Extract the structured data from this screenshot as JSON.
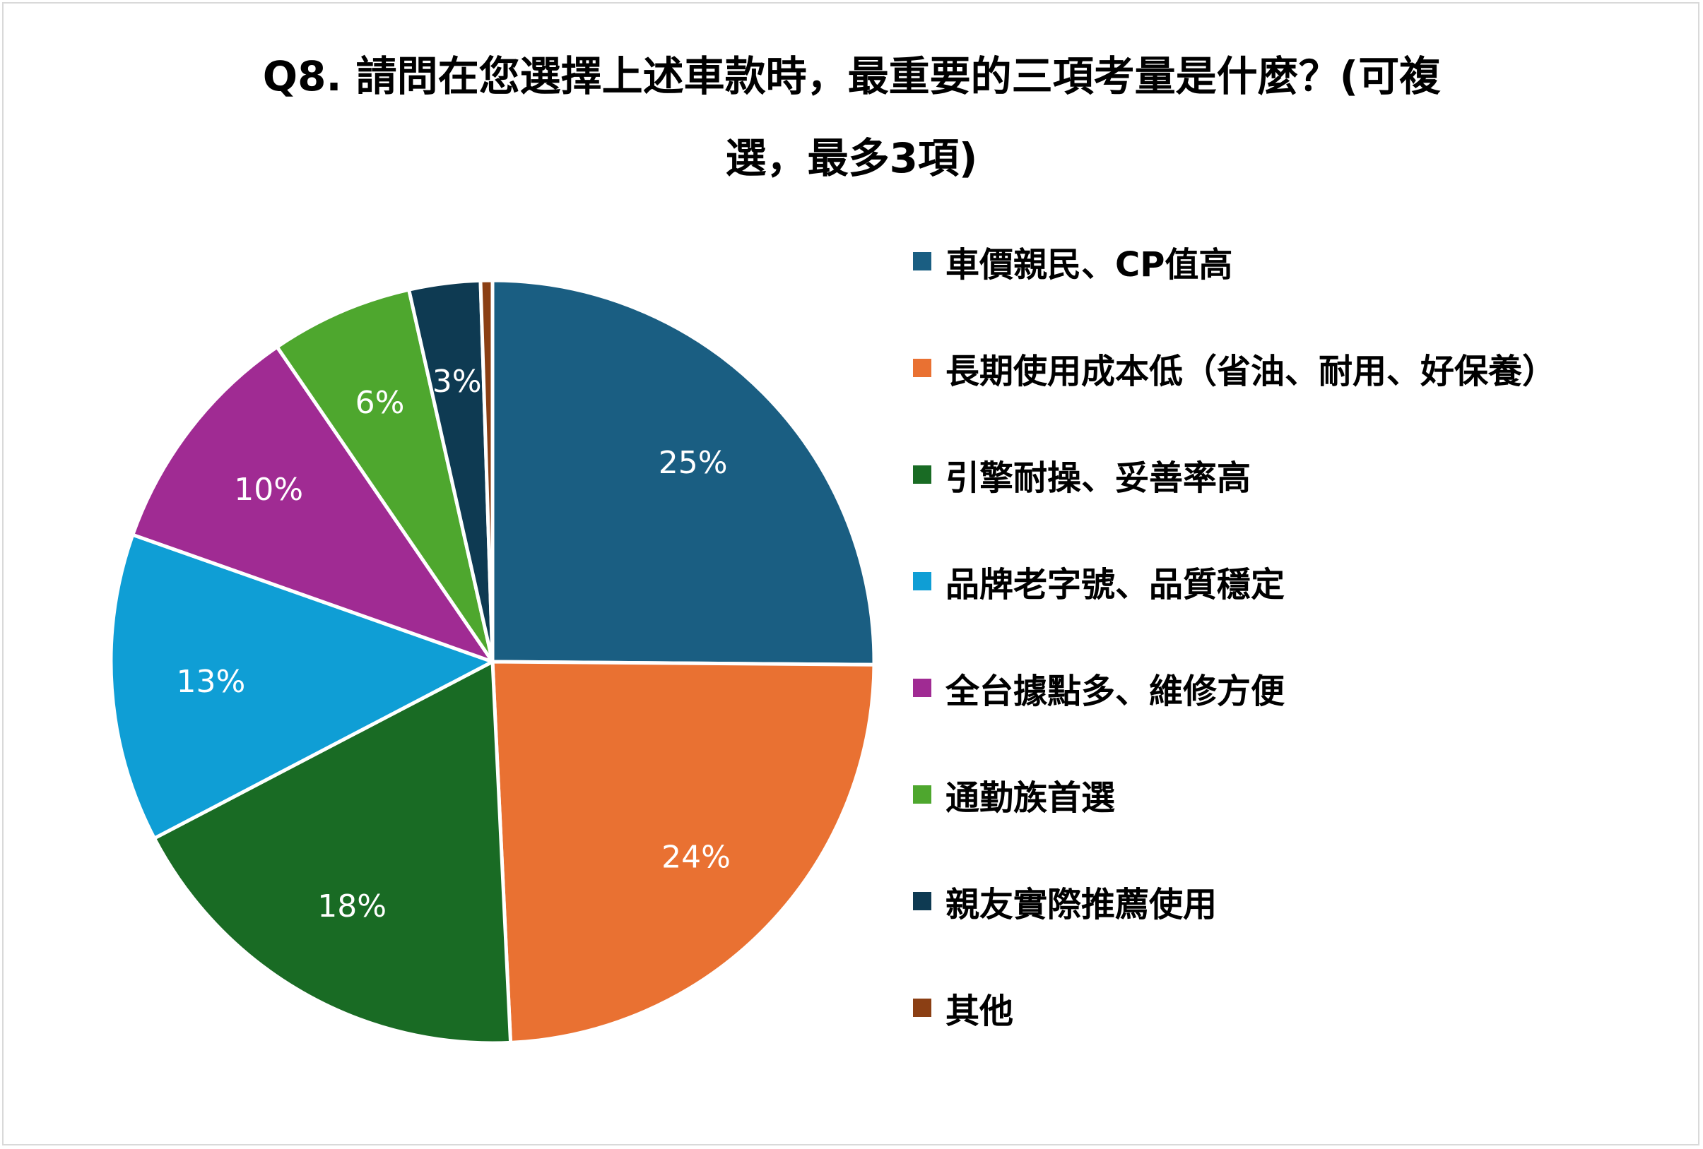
{
  "chart_data": {
    "type": "pie",
    "title": "Q8. 請問在您選擇上述車款時，最重要的三項考量是什麼？(可複選，最多3項)",
    "title_lines": [
      "Q8. 請問在您選擇上述車款時，最重要的三項考量是什麼？(可複",
      "選，最多3項)"
    ],
    "categories": [
      "車價親民、CP值高",
      "長期使用成本低（省油、耐用、好保養）",
      "引擎耐操、妥善率高",
      "品牌老字號、品質穩定",
      "全台據點多、維修方便",
      "通勤族首選",
      "親友實際推薦使用",
      "其他"
    ],
    "values": [
      25,
      24,
      18,
      13,
      10,
      6,
      3,
      0.5
    ],
    "data_labels": [
      "25%",
      "24%",
      "18%",
      "13%",
      "10%",
      "6%",
      "3%",
      ""
    ],
    "colors": [
      "#1a5e82",
      "#e97132",
      "#196b24",
      "#0f9ed5",
      "#a02b93",
      "#4ea72e",
      "#0e3a52",
      "#8b3f14"
    ],
    "label_colors": [
      "#ffffff",
      "#ffffff",
      "#ffffff",
      "#ffffff",
      "#ffffff",
      "#ffffff",
      "#ffffff",
      "#ffffff"
    ],
    "legend_position": "right",
    "start_angle": "12 o'clock",
    "direction": "clockwise"
  }
}
